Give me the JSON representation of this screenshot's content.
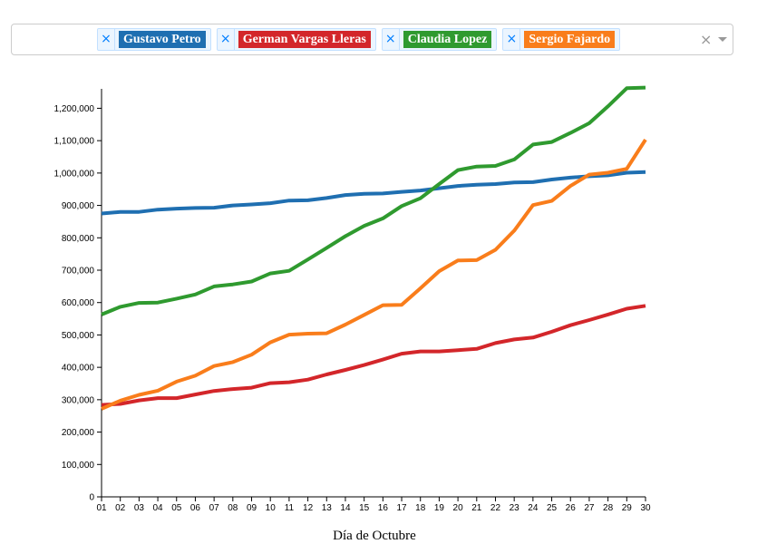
{
  "select": {
    "chips": [
      {
        "label": "Gustavo Petro",
        "color": "#1f6fb1",
        "remove": "×"
      },
      {
        "label": "German Vargas Lleras",
        "color": "#d3262a",
        "remove": "×"
      },
      {
        "label": "Claudia Lopez",
        "color": "#2f9a2f",
        "remove": "×"
      },
      {
        "label": "Sergio Fajardo",
        "color": "#f97d1b",
        "remove": "×"
      }
    ],
    "clear": "×"
  },
  "chart_data": {
    "type": "line",
    "xlabel": "Día de Octubre",
    "ylabel": "",
    "title": "",
    "ylim": [
      0,
      1260000
    ],
    "yticks": [
      0,
      100000,
      200000,
      300000,
      400000,
      500000,
      600000,
      700000,
      800000,
      900000,
      1000000,
      1100000,
      1200000
    ],
    "ytick_labels": [
      "0",
      "100,000",
      "200,000",
      "300,000",
      "400,000",
      "500,000",
      "600,000",
      "700,000",
      "800,000",
      "900,000",
      "1,000,000",
      "1,100,000",
      "1,200,000"
    ],
    "x": [
      "01",
      "02",
      "03",
      "04",
      "05",
      "06",
      "07",
      "08",
      "09",
      "10",
      "11",
      "12",
      "13",
      "14",
      "15",
      "16",
      "17",
      "18",
      "19",
      "20",
      "21",
      "22",
      "23",
      "24",
      "25",
      "26",
      "27",
      "28",
      "29",
      "30"
    ],
    "series": [
      {
        "name": "Gustavo Petro",
        "color": "#1f6fb1",
        "values": [
          875000,
          880000,
          880000,
          887000,
          890000,
          892000,
          893000,
          900000,
          903000,
          907000,
          915000,
          916000,
          923000,
          932000,
          936000,
          937000,
          942000,
          946000,
          953000,
          960000,
          964000,
          966000,
          971000,
          972000,
          980000,
          986000,
          990000,
          993000,
          1001000,
          1003000
        ]
      },
      {
        "name": "German Vargas Lleras",
        "color": "#d3262a",
        "values": [
          284000,
          287000,
          298000,
          305000,
          305000,
          316000,
          327000,
          333000,
          337000,
          351000,
          354000,
          362000,
          378000,
          392000,
          407000,
          424000,
          442000,
          449000,
          449000,
          453000,
          457000,
          475000,
          486000,
          492000,
          510000,
          530000,
          546000,
          563000,
          581000,
          590000
        ]
      },
      {
        "name": "Claudia Lopez",
        "color": "#2f9a2f",
        "values": [
          563000,
          587000,
          599000,
          600000,
          612000,
          625000,
          650000,
          656000,
          665000,
          690000,
          698000,
          733000,
          769000,
          805000,
          837000,
          860000,
          898000,
          922000,
          966000,
          1009000,
          1020000,
          1022000,
          1042000,
          1088000,
          1096000,
          1124000,
          1154000,
          1206000,
          1262000,
          1264000
        ]
      },
      {
        "name": "Sergio Fajardo",
        "color": "#f97d1b",
        "values": [
          272000,
          297000,
          315000,
          328000,
          356000,
          374000,
          404000,
          416000,
          439000,
          477000,
          501000,
          504000,
          505000,
          532000,
          562000,
          592000,
          593000,
          644000,
          697000,
          730000,
          731000,
          763000,
          822000,
          901000,
          914000,
          960000,
          995000,
          1001000,
          1013000,
          1103000
        ]
      }
    ],
    "grid": false,
    "legend": "top"
  }
}
